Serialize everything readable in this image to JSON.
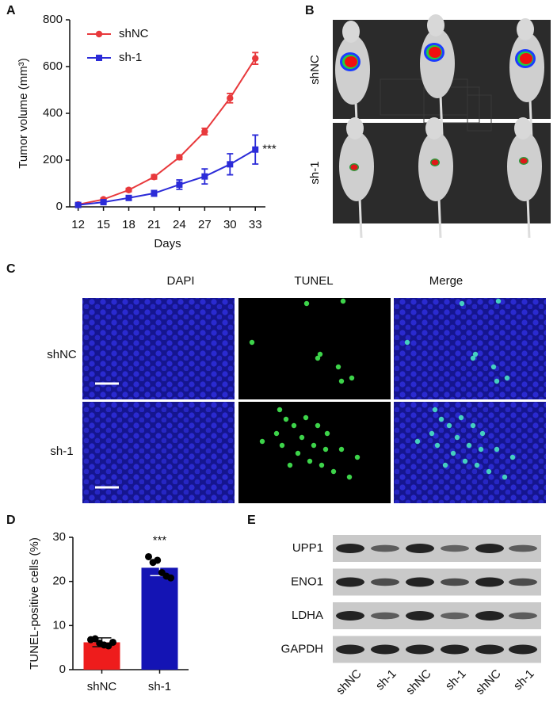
{
  "panel_labels": [
    "A",
    "B",
    "C",
    "D",
    "E"
  ],
  "chart_data": [
    {
      "type": "line",
      "x_label": "Days",
      "y_label": "Tumor volume (mm³)",
      "x": [
        12,
        15,
        18,
        21,
        24,
        27,
        30,
        33
      ],
      "xlim": [
        11,
        34.2
      ],
      "xticks": [
        12,
        15,
        18,
        21,
        24,
        27,
        30,
        33
      ],
      "ylim": [
        0,
        800
      ],
      "yticks": [
        0,
        200,
        400,
        600,
        800
      ],
      "legend": "upper left",
      "series": [
        {
          "name": "shNC",
          "color": "#e8393c",
          "marker": "circle",
          "values": [
            10,
            32,
            72,
            128,
            212,
            322,
            465,
            635
          ],
          "errors": [
            4,
            5,
            7,
            9,
            10,
            14,
            20,
            25
          ]
        },
        {
          "name": "sh-1",
          "color": "#2b2bd8",
          "marker": "square",
          "values": [
            8,
            20,
            38,
            58,
            95,
            130,
            182,
            245
          ],
          "errors": [
            4,
            6,
            8,
            12,
            20,
            32,
            45,
            62
          ],
          "annotation": "***"
        }
      ]
    },
    {
      "type": "bar",
      "y_label": "TUNEL-positive cells (%)",
      "categories": [
        "shNC",
        "sh-1"
      ],
      "values": [
        6.2,
        23.1
      ],
      "errors": [
        1.0,
        1.8
      ],
      "colors": [
        "#ee1c1c",
        "#1414b4"
      ],
      "points": [
        [
          6.8,
          7.0,
          6.0,
          5.6,
          5.4,
          6.2
        ],
        [
          25.6,
          24.3,
          24.8,
          22.0,
          21.2,
          20.8
        ]
      ],
      "ylim": [
        0,
        30
      ],
      "yticks": [
        0,
        10,
        20,
        30
      ],
      "annotations": {
        "sh-1": "***"
      }
    }
  ],
  "imaging": {
    "row_labels": [
      "shNC",
      "sh-1"
    ]
  },
  "tunel": {
    "columns": [
      "DAPI",
      "TUNEL",
      "Merge"
    ],
    "row_labels": [
      "shNC",
      "sh-1"
    ]
  },
  "western_blot": {
    "proteins": [
      "UPP1",
      "ENO1",
      "LDHA",
      "GAPDH"
    ],
    "lanes": [
      "shNC",
      "sh-1",
      "shNC",
      "sh-1",
      "shNC",
      "sh-1"
    ]
  }
}
